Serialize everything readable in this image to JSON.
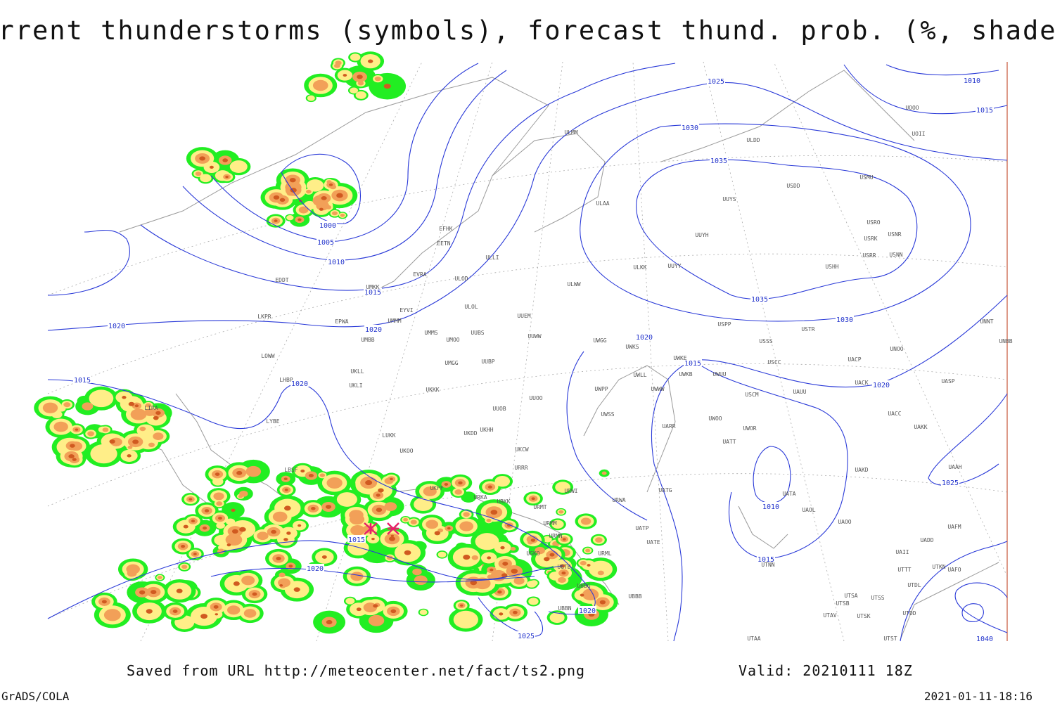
{
  "title": "Current thunderstorms (symbols), forecast thund. prob. (%, shaded)",
  "footer": {
    "saved": "Saved from URL http://meteocenter.net/fact/ts2.png",
    "valid": "Valid: 20210111 18Z",
    "software": "GrADS/COLA",
    "timestamp": "2021-01-11-18:16"
  },
  "isobar_labels": [
    "1025",
    "1010",
    "1015",
    "1030",
    "1035",
    "1000",
    "1005",
    "1010",
    "1015",
    "1020",
    "1020",
    "1015",
    "1020",
    "1020",
    "1015",
    "1020",
    "1035",
    "1030",
    "1025",
    "1010",
    "1015",
    "1015",
    "1020",
    "1020",
    "1025",
    "1040"
  ],
  "stations": [
    "EFHK",
    "EETN",
    "EVRA",
    "ULOD",
    "ULLI",
    "EYVI",
    "UMMM",
    "EPWA",
    "ULOL",
    "UUEM",
    "UMMS",
    "UMOO",
    "UUBS",
    "UUWW",
    "UMBB",
    "LKPR",
    "EDDT",
    "UMKK",
    "ULMM",
    "ULAA",
    "ULWW",
    "ULKK",
    "UUYY",
    "UUYH",
    "UUYS",
    "ULDD",
    "USDD",
    "USMU",
    "UOOO",
    "UOII",
    "USRO",
    "USRK",
    "USNR",
    "USRR",
    "USNN",
    "USHH",
    "USPP",
    "USTR",
    "USSS",
    "UNNT",
    "UNBB",
    "UNOO",
    "UACP",
    "USCC",
    "UACK",
    "UASP",
    "UWGG",
    "UWKS",
    "UWKE",
    "UWKB",
    "UWUU",
    "UWLL",
    "UWWW",
    "UWPP",
    "USCM",
    "UAUU",
    "UWSS",
    "UARR",
    "UWOO",
    "UWOR",
    "UATT",
    "UACC",
    "UAKK",
    "UAKD",
    "UAAH",
    "LOWW",
    "LHBP",
    "UKLL",
    "UKLI",
    "UKKK",
    "UUOO",
    "UUOB",
    "UKHH",
    "UKDD",
    "UKCW",
    "URRR",
    "LUKK",
    "UKOO",
    "LYBE",
    "LBSF",
    "UKFF",
    "URKA",
    "URKK",
    "URMT",
    "URMM",
    "URMN",
    "URWI",
    "URWA",
    "UATG",
    "UATE",
    "UATP",
    "UATA",
    "UAOL",
    "UAOO",
    "URML",
    "UGTB",
    "UBBG",
    "UBBN",
    "UBBB",
    "UTAV",
    "UTSB",
    "UTSA",
    "UTSS",
    "UTSK",
    "UTDD",
    "UTST",
    "UTAA",
    "UTNN",
    "UAII",
    "UTTT",
    "UTKN",
    "UAFO",
    "UTDL",
    "UADD",
    "UAFM",
    "UGKO",
    "LIRA",
    "UMGG",
    "UUBP"
  ]
}
